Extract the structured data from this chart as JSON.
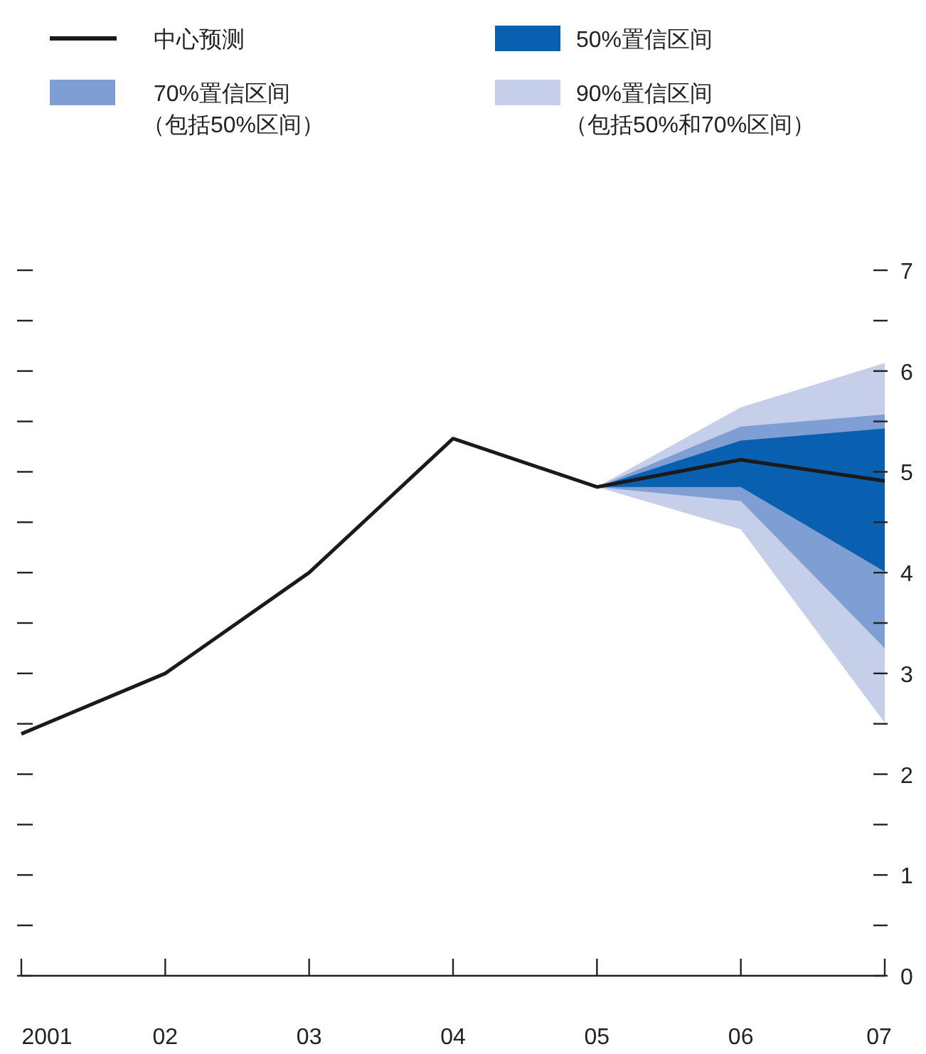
{
  "chart_data": {
    "type": "line",
    "categories": [
      "2001",
      "02",
      "03",
      "04",
      "05",
      "06",
      "07"
    ],
    "ylim": [
      0,
      7
    ],
    "yticks": [
      0,
      {
        "value": 0.5,
        "label": null
      },
      1,
      {
        "value": 1.5,
        "label": null
      },
      2,
      {
        "value": 2.5,
        "label": null
      },
      3,
      {
        "value": 3.5,
        "label": null
      },
      4,
      {
        "value": 4.5,
        "label": null
      },
      5,
      {
        "value": 5.5,
        "label": null
      },
      6,
      {
        "value": 6.5,
        "label": null
      },
      7
    ],
    "grid": false,
    "legend": "top",
    "marker": "none",
    "line_style": "solid",
    "series": [
      {
        "name": "90%置信区间（包括50%和70%区间）",
        "type": "area",
        "color": "#c5cfe9",
        "values": [
          null,
          null,
          null,
          null,
          null,
          null,
          null
        ],
        "lower": [
          null,
          null,
          null,
          null,
          4.85,
          4.43,
          2.51
        ],
        "upper": [
          null,
          null,
          null,
          null,
          4.85,
          5.64,
          6.08
        ]
      },
      {
        "name": "70%置信区间（包括50%区间）",
        "type": "area",
        "color": "#7f9fd4",
        "values": [
          null,
          null,
          null,
          null,
          null,
          null,
          null
        ],
        "lower": [
          null,
          null,
          null,
          null,
          4.85,
          4.71,
          3.25
        ],
        "upper": [
          null,
          null,
          null,
          null,
          4.85,
          5.45,
          5.57
        ]
      },
      {
        "name": "50%置信区间",
        "type": "area",
        "color": "#0a60b0",
        "values": [
          null,
          null,
          null,
          null,
          null,
          null,
          null
        ],
        "lower": [
          null,
          null,
          null,
          null,
          4.85,
          4.85,
          4.01
        ],
        "upper": [
          null,
          null,
          null,
          null,
          4.85,
          5.31,
          5.43
        ]
      },
      {
        "name": "中心预测",
        "color": "#1a1a1a",
        "values": [
          2.4,
          3.0,
          4.0,
          5.33,
          4.85,
          5.12,
          4.91
        ]
      }
    ]
  }
}
